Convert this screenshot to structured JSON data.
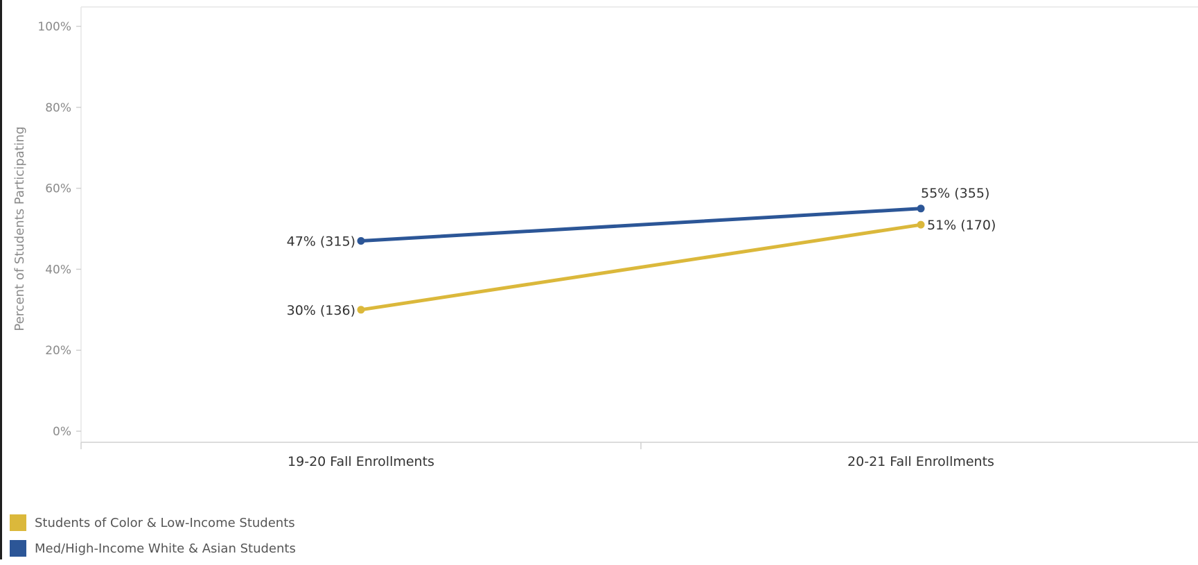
{
  "chart_data": {
    "type": "line",
    "title": "",
    "xlabel": "",
    "ylabel": "Percent of Students Participating",
    "categories": [
      "19-20 Fall Enrollments",
      "20-21 Fall Enrollments"
    ],
    "ylim": [
      0,
      100
    ],
    "yticks": [
      "0%",
      "20%",
      "40%",
      "60%",
      "80%",
      "100%"
    ],
    "ytick_values": [
      0,
      20,
      40,
      60,
      80,
      100
    ],
    "grid": false,
    "legend_position": "bottom-left",
    "series": [
      {
        "name": "Students of Color & Low-Income Students",
        "color": "#dbb83b",
        "values": [
          30,
          51
        ],
        "labels": [
          "30% (136)",
          "51% (170)"
        ]
      },
      {
        "name": "Med/High-Income White & Asian Students",
        "color": "#2c5697",
        "values": [
          47,
          55
        ],
        "labels": [
          "47% (315)",
          "55% (355)"
        ]
      }
    ]
  }
}
